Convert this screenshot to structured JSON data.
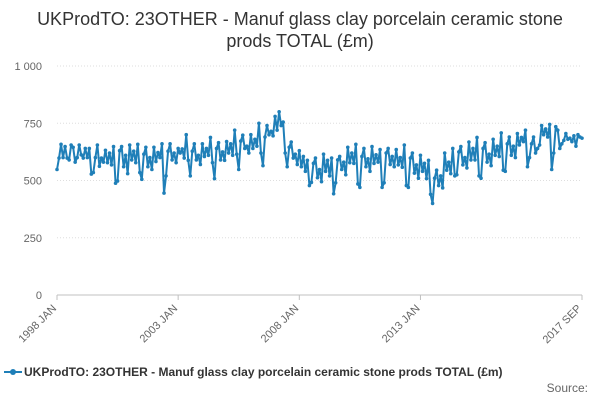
{
  "chart_data": {
    "type": "line",
    "title": "UKProdTO: 23OTHER - Manuf glass clay porcelain ceramic stone prods TOTAL (£m)",
    "xlabel": "",
    "ylabel": "",
    "x_start": "1998 JAN",
    "x_end": "2017 SEP",
    "x_ticks": [
      "1998 JAN",
      "2003 JAN",
      "2008 JAN",
      "2013 JAN",
      "2017 SEP"
    ],
    "y_ticks": [
      "0",
      "250",
      "500",
      "750",
      "1 000"
    ],
    "ylim": [
      0,
      1000
    ],
    "grid": true,
    "legend_position": "bottom",
    "color": "#1f7fb8",
    "series": [
      {
        "name": "UKProdTO: 23OTHER - Manuf glass clay porcelain ceramic stone prods TOTAL (£m)",
        "values": [
          548,
          598,
          658,
          600,
          648,
          598,
          590,
          655,
          645,
          580,
          600,
          655,
          612,
          598,
          640,
          600,
          640,
          528,
          535,
          600,
          655,
          562,
          598,
          580,
          632,
          578,
          620,
          568,
          648,
          488,
          498,
          630,
          648,
          560,
          610,
          530,
          655,
          590,
          628,
          578,
          658,
          535,
          505,
          615,
          645,
          560,
          600,
          548,
          645,
          583,
          622,
          600,
          660,
          445,
          520,
          628,
          660,
          590,
          620,
          578,
          640,
          620,
          638,
          598,
          700,
          588,
          520,
          628,
          660,
          590,
          610,
          570,
          660,
          605,
          640,
          610,
          688,
          578,
          508,
          640,
          665,
          590,
          625,
          588,
          670,
          620,
          660,
          610,
          720,
          615,
          548,
          672,
          698,
          640,
          650,
          620,
          700,
          640,
          680,
          650,
          750,
          620,
          565,
          690,
          740,
          700,
          715,
          695,
          780,
          720,
          800,
          740,
          755,
          620,
          560,
          645,
          668,
          598,
          615,
          570,
          630,
          560,
          605,
          540,
          588,
          478,
          492,
          575,
          598,
          512,
          548,
          495,
          615,
          540,
          588,
          520,
          598,
          442,
          490,
          590,
          605,
          548,
          580,
          525,
          645,
          578,
          620,
          575,
          658,
          485,
          470,
          605,
          640,
          560,
          595,
          540,
          648,
          575,
          612,
          580,
          635,
          470,
          490,
          620,
          640,
          570,
          605,
          560,
          635,
          568,
          600,
          558,
          655,
          478,
          470,
          598,
          620,
          532,
          568,
          510,
          610,
          540,
          575,
          508,
          588,
          440,
          400,
          510,
          545,
          478,
          520,
          468,
          620,
          545,
          580,
          530,
          640,
          520,
          525,
          625,
          648,
          568,
          600,
          555,
          668,
          590,
          640,
          590,
          688,
          520,
          510,
          640,
          665,
          580,
          615,
          565,
          680,
          610,
          650,
          605,
          708,
          545,
          540,
          660,
          690,
          610,
          650,
          600,
          705,
          655,
          688,
          670,
          720,
          560,
          600,
          660,
          690,
          620,
          640,
          655,
          740,
          700,
          725,
          690,
          745,
          548,
          620,
          735,
          720,
          640,
          660,
          675,
          705,
          680,
          685,
          670,
          695,
          650,
          700,
          690,
          685
        ]
      }
    ]
  },
  "legend": {
    "label": "UKProdTO: 23OTHER - Manuf glass clay porcelain ceramic stone prods TOTAL (£m)"
  },
  "source": {
    "label": "Source:"
  }
}
